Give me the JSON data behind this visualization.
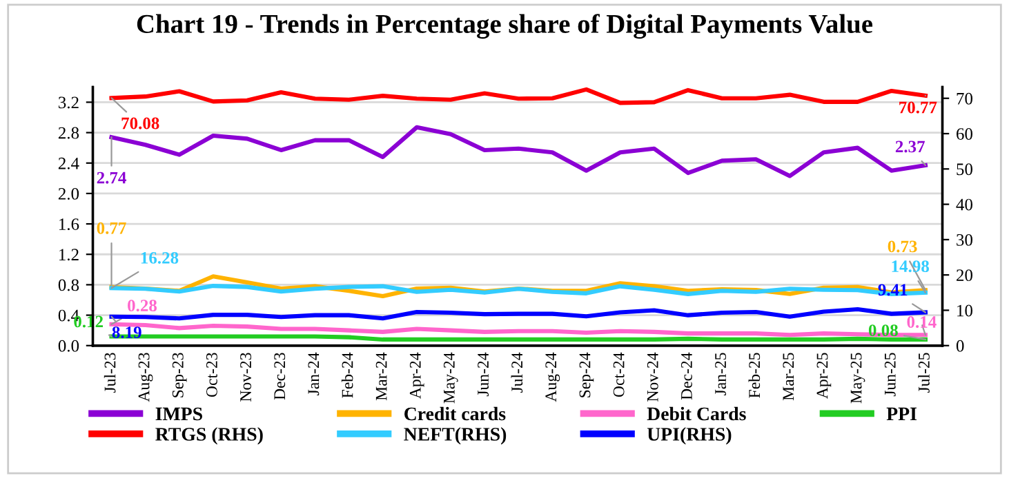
{
  "chart_data": {
    "type": "line",
    "title": "Chart 19 - Trends in Percentage share of Digital Payments Value",
    "categories": [
      "Jul-23",
      "Aug-23",
      "Sep-23",
      "Oct-23",
      "Nov-23",
      "Dec-23",
      "Jan-24",
      "Feb-24",
      "Mar-24",
      "Apr-24",
      "May-24",
      "Jun-24",
      "Jul-24",
      "Aug-24",
      "Sep-24",
      "Oct-24",
      "Nov-24",
      "Dec-24",
      "Jan-25",
      "Feb-25",
      "Mar-25",
      "Apr-25",
      "May-25",
      "Jun-25",
      "Jul-25"
    ],
    "ylim": [
      0,
      3.4
    ],
    "yticks": [
      {
        "value": 0,
        "label": "0.0"
      },
      {
        "value": 0.4,
        "label": "0.4"
      },
      {
        "value": 0.8,
        "label": "0.8"
      },
      {
        "value": 1.2,
        "label": "1.2"
      },
      {
        "value": 1.6,
        "label": "1.6"
      },
      {
        "value": 2.0,
        "label": "2.0"
      },
      {
        "value": 2.4,
        "label": "2.4"
      },
      {
        "value": 2.8,
        "label": "2.8"
      },
      {
        "value": 3.2,
        "label": "3.2"
      }
    ],
    "y2lim": [
      0,
      73.2
    ],
    "y2ticks": [
      0,
      10,
      20,
      30,
      40,
      50,
      60,
      70
    ],
    "grid": "y",
    "legend": "bottom",
    "marker": "none",
    "line_style": "solid",
    "series": [
      {
        "name": "IMPS",
        "color": "#8b00d4",
        "values": [
          2.74,
          2.64,
          2.51,
          2.76,
          2.72,
          2.57,
          2.7,
          2.7,
          2.48,
          2.87,
          2.78,
          2.57,
          2.59,
          2.54,
          2.3,
          2.54,
          2.59,
          2.27,
          2.43,
          2.45,
          2.23,
          2.54,
          2.6,
          2.3,
          2.37
        ],
        "value_labels": [
          "2.74",
          null,
          null,
          null,
          null,
          null,
          null,
          null,
          null,
          null,
          null,
          null,
          null,
          null,
          null,
          null,
          null,
          null,
          null,
          null,
          null,
          null,
          null,
          null,
          "2.37"
        ]
      },
      {
        "name": "Credit cards",
        "color": "#ffb300",
        "values": [
          0.77,
          0.75,
          0.72,
          0.91,
          0.83,
          0.75,
          0.78,
          0.72,
          0.65,
          0.75,
          0.76,
          0.71,
          0.75,
          0.72,
          0.72,
          0.82,
          0.78,
          0.72,
          0.74,
          0.73,
          0.68,
          0.76,
          0.77,
          0.7,
          0.73
        ],
        "value_labels": [
          "0.77",
          null,
          null,
          null,
          null,
          null,
          null,
          null,
          null,
          null,
          null,
          null,
          null,
          null,
          null,
          null,
          null,
          null,
          null,
          null,
          null,
          null,
          null,
          null,
          "0.73"
        ]
      },
      {
        "name": "Debit Cards",
        "color": "#ff66cc",
        "values": [
          0.28,
          0.27,
          0.23,
          0.26,
          0.25,
          0.22,
          0.22,
          0.2,
          0.18,
          0.22,
          0.2,
          0.18,
          0.19,
          0.19,
          0.17,
          0.19,
          0.18,
          0.16,
          0.16,
          0.16,
          0.14,
          0.16,
          0.15,
          0.14,
          0.14
        ],
        "value_labels": [
          "0.28",
          null,
          null,
          null,
          null,
          null,
          null,
          null,
          null,
          null,
          null,
          null,
          null,
          null,
          null,
          null,
          null,
          null,
          null,
          null,
          null,
          null,
          null,
          null,
          "0.14"
        ]
      },
      {
        "name": "PPI",
        "color": "#22cc22",
        "values": [
          0.12,
          0.12,
          0.12,
          0.12,
          0.12,
          0.12,
          0.12,
          0.11,
          0.08,
          0.08,
          0.08,
          0.08,
          0.08,
          0.08,
          0.08,
          0.08,
          0.08,
          0.09,
          0.08,
          0.08,
          0.08,
          0.08,
          0.09,
          0.08,
          0.08
        ],
        "value_labels": [
          "0.12",
          null,
          null,
          null,
          null,
          null,
          null,
          null,
          null,
          null,
          null,
          null,
          null,
          null,
          null,
          null,
          null,
          null,
          null,
          null,
          null,
          null,
          null,
          null,
          "0.08"
        ]
      },
      {
        "name": "RTGS (RHS)",
        "color": "#ff0000",
        "axis": "y2",
        "values": [
          70.08,
          70.5,
          72.0,
          69.1,
          69.4,
          71.7,
          69.9,
          69.6,
          70.7,
          69.9,
          69.6,
          71.4,
          69.9,
          70.0,
          72.5,
          68.7,
          68.9,
          72.3,
          70.0,
          70.0,
          71.0,
          69.0,
          69.0,
          72.1,
          70.77
        ],
        "value_labels": [
          "70.08",
          null,
          null,
          null,
          null,
          null,
          null,
          null,
          null,
          null,
          null,
          null,
          null,
          null,
          null,
          null,
          null,
          null,
          null,
          null,
          null,
          null,
          null,
          null,
          "70.77"
        ]
      },
      {
        "name": "NEFT(RHS)",
        "color": "#33ccff",
        "axis": "y2",
        "values": [
          16.28,
          16.1,
          15.3,
          16.9,
          16.6,
          15.3,
          16.1,
          16.6,
          16.8,
          15.2,
          15.8,
          15.0,
          16.1,
          15.2,
          14.8,
          16.8,
          15.8,
          14.6,
          15.5,
          15.2,
          16.1,
          15.8,
          15.7,
          14.6,
          14.98
        ],
        "value_labels": [
          "16.28",
          null,
          null,
          null,
          null,
          null,
          null,
          null,
          null,
          null,
          null,
          null,
          null,
          null,
          null,
          null,
          null,
          null,
          null,
          null,
          null,
          null,
          null,
          null,
          "14.98"
        ]
      },
      {
        "name": "UPI(RHS)",
        "color": "#0000ff",
        "axis": "y2",
        "values": [
          8.19,
          8.1,
          7.7,
          8.7,
          8.7,
          8.1,
          8.6,
          8.6,
          7.7,
          9.5,
          9.3,
          8.9,
          9.0,
          9.0,
          8.3,
          9.4,
          10.0,
          8.6,
          9.3,
          9.5,
          8.2,
          9.6,
          10.3,
          9.0,
          9.41
        ],
        "value_labels": [
          "8.19",
          null,
          null,
          null,
          null,
          null,
          null,
          null,
          null,
          null,
          null,
          null,
          null,
          null,
          null,
          null,
          null,
          null,
          null,
          null,
          null,
          null,
          null,
          null,
          "9.41"
        ]
      }
    ]
  }
}
